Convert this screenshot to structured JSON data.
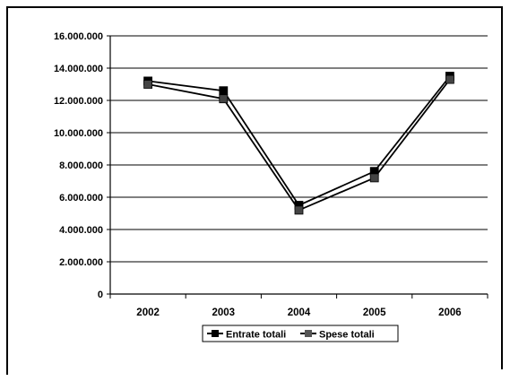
{
  "chart_data": {
    "type": "line",
    "title": "",
    "xlabel": "",
    "ylabel": "",
    "categories": [
      "2002",
      "2003",
      "2004",
      "2005",
      "2006"
    ],
    "y_tick_labels": [
      "0",
      "2.000.000",
      "4.000.000",
      "6.000.000",
      "8.000.000",
      "10.000.000",
      "12.000.000",
      "14.000.000",
      "16.000.000"
    ],
    "ylim": [
      0,
      16000000
    ],
    "grid": "horizontal",
    "legend_position": "bottom",
    "series": [
      {
        "name": "Entrate totali",
        "values": [
          13200000,
          12600000,
          5500000,
          7600000,
          13500000
        ],
        "color": "#000000",
        "marker": "square"
      },
      {
        "name": "Spese totali",
        "values": [
          13000000,
          12100000,
          5200000,
          7200000,
          13300000
        ],
        "color": "#000000",
        "marker": "square"
      }
    ]
  }
}
